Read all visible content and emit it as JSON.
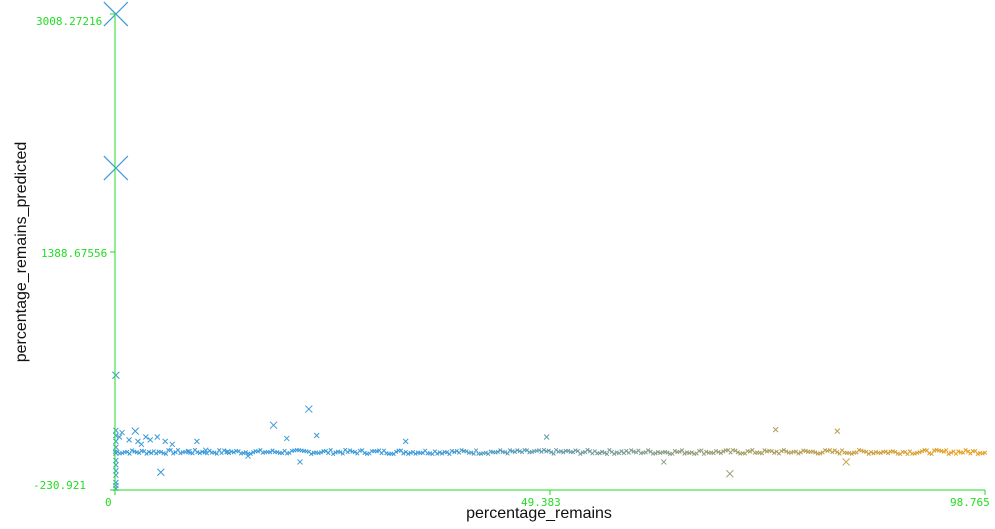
{
  "chart_data": {
    "type": "scatter",
    "title": "",
    "xlabel": "percentage_remains",
    "ylabel": "percentage_remains_predicted",
    "xlim": [
      0,
      98.765
    ],
    "ylim": [
      -230.921,
      3008.27216
    ],
    "x_ticks": [
      "0",
      "49.383",
      "98.765"
    ],
    "y_ticks": [
      "-230.921",
      "1388.67556",
      "3008.27216"
    ],
    "axis_color": "#22dd22",
    "color_low": "#3a9ad9",
    "color_high": "#e6a020",
    "marker": "x",
    "highlight_points": [
      {
        "x": 0.1,
        "y": 3008,
        "size": "large"
      },
      {
        "x": 0.1,
        "y": 1960,
        "size": "large"
      },
      {
        "x": 0.1,
        "y": 550,
        "size": "medium"
      },
      {
        "x": 0.1,
        "y": -220,
        "size": "small"
      },
      {
        "x": 0.1,
        "y": -200,
        "size": "small"
      },
      {
        "x": 0.1,
        "y": -180,
        "size": "small"
      },
      {
        "x": 0.1,
        "y": -130,
        "size": "small"
      },
      {
        "x": 0.1,
        "y": -100,
        "size": "small"
      },
      {
        "x": 0.1,
        "y": -60,
        "size": "small"
      },
      {
        "x": 0.1,
        "y": -30,
        "size": "small"
      },
      {
        "x": 0.1,
        "y": 20,
        "size": "small"
      },
      {
        "x": 0.1,
        "y": 60,
        "size": "small"
      },
      {
        "x": 0.1,
        "y": 100,
        "size": "small"
      },
      {
        "x": 0.1,
        "y": 140,
        "size": "small"
      },
      {
        "x": 0.1,
        "y": 175,
        "size": "small"
      },
      {
        "x": 0.5,
        "y": 130,
        "size": "small"
      },
      {
        "x": 0.8,
        "y": 160,
        "size": "small"
      },
      {
        "x": 1.6,
        "y": 110,
        "size": "small"
      },
      {
        "x": 2.3,
        "y": 170,
        "size": "medium"
      },
      {
        "x": 2.6,
        "y": 100,
        "size": "small"
      },
      {
        "x": 3.0,
        "y": 80,
        "size": "small"
      },
      {
        "x": 3.5,
        "y": 130,
        "size": "small"
      },
      {
        "x": 4.0,
        "y": 110,
        "size": "small"
      },
      {
        "x": 4.8,
        "y": 130,
        "size": "small"
      },
      {
        "x": 5.2,
        "y": -110,
        "size": "medium"
      },
      {
        "x": 5.7,
        "y": 100,
        "size": "small"
      },
      {
        "x": 6.5,
        "y": 80,
        "size": "small"
      },
      {
        "x": 8.4,
        "y": 30,
        "size": "small"
      },
      {
        "x": 9.3,
        "y": 100,
        "size": "small"
      },
      {
        "x": 10.3,
        "y": 40,
        "size": "small"
      },
      {
        "x": 12.8,
        "y": 30,
        "size": "small"
      },
      {
        "x": 15.1,
        "y": 0,
        "size": "small"
      },
      {
        "x": 18.0,
        "y": 210,
        "size": "medium"
      },
      {
        "x": 19.5,
        "y": 120,
        "size": "small"
      },
      {
        "x": 21.0,
        "y": -40,
        "size": "small"
      },
      {
        "x": 22.0,
        "y": 320,
        "size": "medium"
      },
      {
        "x": 22.9,
        "y": 140,
        "size": "small"
      },
      {
        "x": 33.0,
        "y": 100,
        "size": "small"
      },
      {
        "x": 49.0,
        "y": 130,
        "size": "small"
      },
      {
        "x": 62.3,
        "y": -40,
        "size": "small"
      },
      {
        "x": 69.8,
        "y": -120,
        "size": "medium"
      },
      {
        "x": 75.0,
        "y": 180,
        "size": "small"
      },
      {
        "x": 82.0,
        "y": 170,
        "size": "small"
      },
      {
        "x": 83.0,
        "y": -40,
        "size": "medium"
      }
    ],
    "band": {
      "x_range": [
        0,
        98.765
      ],
      "y_center": 28,
      "y_spread": 14,
      "point_count": 360,
      "marker_size": "tiny"
    }
  }
}
